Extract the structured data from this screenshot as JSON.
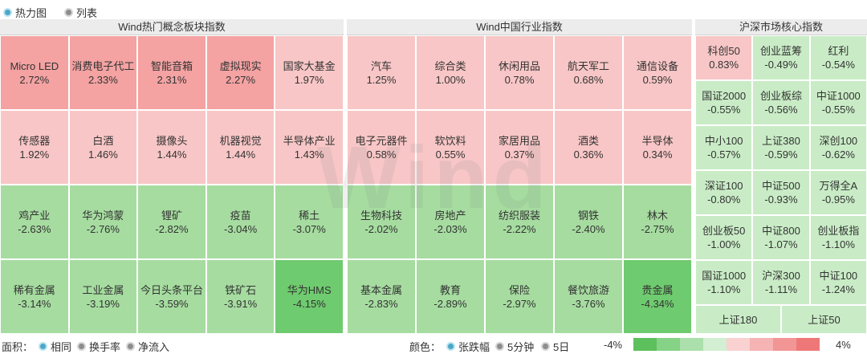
{
  "view_options": [
    {
      "label": "热力图",
      "selected": true
    },
    {
      "label": "列表",
      "selected": false
    }
  ],
  "panels": {
    "concept": {
      "title": "Wind热门概念板块指数",
      "rows": [
        [
          {
            "name": "Micro LED",
            "value": "2.72%",
            "color": "#f4a2a2"
          },
          {
            "name": "消费电子代工",
            "value": "2.33%",
            "color": "#f4a2a2"
          },
          {
            "name": "智能音箱",
            "value": "2.31%",
            "color": "#f4a2a2"
          },
          {
            "name": "虚拟现实",
            "value": "2.27%",
            "color": "#f4a2a2"
          },
          {
            "name": "国家大基金",
            "value": "1.97%",
            "color": "#f8c6c6"
          }
        ],
        [
          {
            "name": "传感器",
            "value": "1.92%",
            "color": "#f8c6c6"
          },
          {
            "name": "白酒",
            "value": "1.46%",
            "color": "#f8c6c6"
          },
          {
            "name": "摄像头",
            "value": "1.44%",
            "color": "#f8c6c6"
          },
          {
            "name": "机器视觉",
            "value": "1.44%",
            "color": "#f8c6c6"
          },
          {
            "name": "半导体产业",
            "value": "1.43%",
            "color": "#f8c6c6"
          }
        ],
        [
          {
            "name": "鸡产业",
            "value": "-2.63%",
            "color": "#a6dca0"
          },
          {
            "name": "华为鸿蒙",
            "value": "-2.76%",
            "color": "#a6dca0"
          },
          {
            "name": "锂矿",
            "value": "-2.82%",
            "color": "#a6dca0"
          },
          {
            "name": "疫苗",
            "value": "-3.04%",
            "color": "#a6dca0"
          },
          {
            "name": "稀土",
            "value": "-3.07%",
            "color": "#a6dca0"
          }
        ],
        [
          {
            "name": "稀有金属",
            "value": "-3.14%",
            "color": "#a6dca0"
          },
          {
            "name": "工业金属",
            "value": "-3.19%",
            "color": "#a6dca0"
          },
          {
            "name": "今日头条平台",
            "value": "-3.59%",
            "color": "#a6dca0"
          },
          {
            "name": "铁矿石",
            "value": "-3.91%",
            "color": "#a6dca0"
          },
          {
            "name": "华为HMS",
            "value": "-4.15%",
            "color": "#6fcb6f"
          }
        ]
      ]
    },
    "industry": {
      "title": "Wind中国行业指数",
      "rows": [
        [
          {
            "name": "汽车",
            "value": "1.25%",
            "color": "#f8c6c6"
          },
          {
            "name": "综合类",
            "value": "1.00%",
            "color": "#f8c6c6"
          },
          {
            "name": "休闲用品",
            "value": "0.78%",
            "color": "#f8c6c6"
          },
          {
            "name": "航天军工",
            "value": "0.68%",
            "color": "#f8c6c6"
          },
          {
            "name": "通信设备",
            "value": "0.59%",
            "color": "#f8c6c6"
          }
        ],
        [
          {
            "name": "电子元器件",
            "value": "0.58%",
            "color": "#f8c6c6"
          },
          {
            "name": "软饮料",
            "value": "0.55%",
            "color": "#f8c6c6"
          },
          {
            "name": "家居用品",
            "value": "0.37%",
            "color": "#f8c6c6"
          },
          {
            "name": "酒类",
            "value": "0.36%",
            "color": "#f8c6c6"
          },
          {
            "name": "半导体",
            "value": "0.34%",
            "color": "#f8c6c6"
          }
        ],
        [
          {
            "name": "生物科技",
            "value": "-2.02%",
            "color": "#a6dca0"
          },
          {
            "name": "房地产",
            "value": "-2.03%",
            "color": "#a6dca0"
          },
          {
            "name": "纺织服装",
            "value": "-2.22%",
            "color": "#a6dca0"
          },
          {
            "name": "钢铁",
            "value": "-2.40%",
            "color": "#a6dca0"
          },
          {
            "name": "林木",
            "value": "-2.75%",
            "color": "#a6dca0"
          }
        ],
        [
          {
            "name": "基本金属",
            "value": "-2.83%",
            "color": "#a6dca0"
          },
          {
            "name": "教育",
            "value": "-2.89%",
            "color": "#a6dca0"
          },
          {
            "name": "保险",
            "value": "-2.97%",
            "color": "#a6dca0"
          },
          {
            "name": "餐饮旅游",
            "value": "-3.76%",
            "color": "#a6dca0"
          },
          {
            "name": "贵金属",
            "value": "-4.34%",
            "color": "#6fcb6f"
          }
        ]
      ]
    },
    "core": {
      "title": "沪深市场核心指数",
      "rows": [
        [
          {
            "name": "科创50",
            "value": "0.83%",
            "color": "#f8c6c6"
          },
          {
            "name": "创业蓝筹",
            "value": "-0.49%",
            "color": "#c9ecc6"
          },
          {
            "name": "红利",
            "value": "-0.54%",
            "color": "#c9ecc6"
          }
        ],
        [
          {
            "name": "国证2000",
            "value": "-0.55%",
            "color": "#c9ecc6"
          },
          {
            "name": "创业板综",
            "value": "-0.56%",
            "color": "#c9ecc6"
          },
          {
            "name": "中证1000",
            "value": "-0.55%",
            "color": "#c9ecc6"
          }
        ],
        [
          {
            "name": "中小100",
            "value": "-0.57%",
            "color": "#c9ecc6"
          },
          {
            "name": "上证380",
            "value": "-0.59%",
            "color": "#c9ecc6"
          },
          {
            "name": "深创100",
            "value": "-0.62%",
            "color": "#c9ecc6"
          }
        ],
        [
          {
            "name": "深证100",
            "value": "-0.80%",
            "color": "#c9ecc6"
          },
          {
            "name": "中证500",
            "value": "-0.93%",
            "color": "#c9ecc6"
          },
          {
            "name": "万得全A",
            "value": "-0.95%",
            "color": "#c9ecc6"
          }
        ],
        [
          {
            "name": "创业板50",
            "value": "-1.00%",
            "color": "#c9ecc6"
          },
          {
            "name": "中证800",
            "value": "-1.07%",
            "color": "#c9ecc6"
          },
          {
            "name": "创业板指",
            "value": "-1.10%",
            "color": "#c9ecc6"
          }
        ],
        [
          {
            "name": "国证1000",
            "value": "-1.10%",
            "color": "#c9ecc6"
          },
          {
            "name": "沪深300",
            "value": "-1.11%",
            "color": "#c9ecc6"
          },
          {
            "name": "中证100",
            "value": "-1.24%",
            "color": "#c9ecc6"
          }
        ]
      ],
      "bottom": [
        {
          "name": "上证180",
          "color": "#c9ecc6"
        },
        {
          "name": "上证50",
          "color": "#c9ecc6"
        }
      ]
    }
  },
  "watermark": "Wind",
  "area_label": "面积：",
  "area_options": [
    {
      "label": "相同",
      "selected": true
    },
    {
      "label": "换手率",
      "selected": false
    },
    {
      "label": "净流入",
      "selected": false
    }
  ],
  "color_label": "颜色：",
  "color_options": [
    {
      "label": "张跌幅",
      "selected": true
    },
    {
      "label": "5分钟",
      "selected": false
    },
    {
      "label": "5日",
      "selected": false
    }
  ],
  "scale": {
    "min_label": "-4%",
    "max_label": "4%",
    "colors": [
      "#5cc05c",
      "#86d286",
      "#abdfab",
      "#d3efd3",
      "#f9d1d1",
      "#f5b3b3",
      "#f29595",
      "#ee7878"
    ]
  }
}
